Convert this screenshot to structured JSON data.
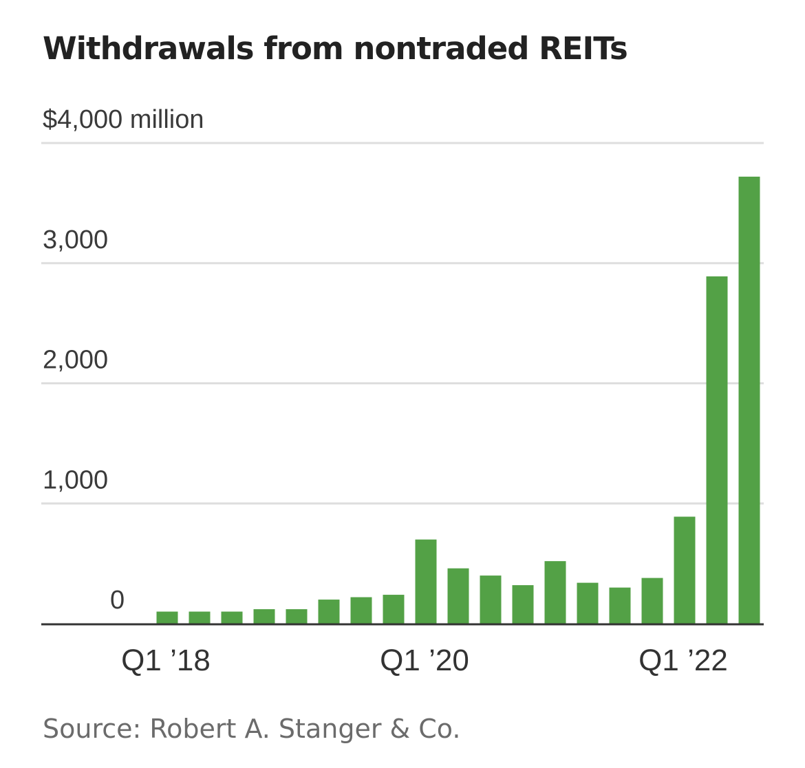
{
  "chart_data": {
    "type": "bar",
    "title": "Withdrawals from nontraded REITs",
    "ylabel": "",
    "xlabel": "",
    "unit": "$ million",
    "ylim": [
      0,
      4000
    ],
    "yticks": [
      {
        "value": 4000,
        "label": "$4,000 million"
      },
      {
        "value": 3000,
        "label": "3,000"
      },
      {
        "value": 2000,
        "label": "2,000"
      },
      {
        "value": 1000,
        "label": "1,000"
      },
      {
        "value": 0,
        "label": "0"
      }
    ],
    "categories": [
      "Q1 2018",
      "Q2 2018",
      "Q3 2018",
      "Q4 2018",
      "Q1 2019",
      "Q2 2019",
      "Q3 2019",
      "Q4 2019",
      "Q1 2020",
      "Q2 2020",
      "Q3 2020",
      "Q4 2020",
      "Q1 2021",
      "Q2 2021",
      "Q3 2021",
      "Q4 2021",
      "Q1 2022",
      "Q2 2022",
      "Q3 2022"
    ],
    "values": [
      100,
      100,
      100,
      120,
      120,
      200,
      220,
      240,
      700,
      460,
      400,
      320,
      520,
      340,
      300,
      380,
      890,
      2890,
      3720
    ],
    "xtick_labels": [
      {
        "index": 0,
        "label": "Q1 ’18"
      },
      {
        "index": 8,
        "label": "Q1 ’20"
      },
      {
        "index": 16,
        "label": "Q1 ’22"
      }
    ],
    "grid": true,
    "colors": {
      "bar": "#53a146",
      "grid": "#dedede",
      "axis": "#333333"
    }
  },
  "source": "Source: Robert A. Stanger & Co."
}
